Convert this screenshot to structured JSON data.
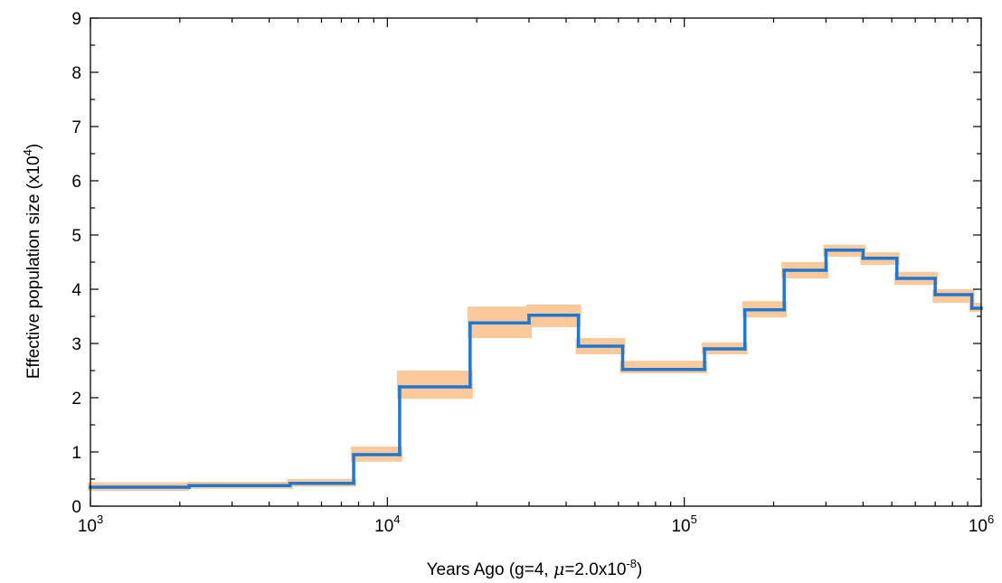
{
  "chart_data": {
    "type": "line",
    "xscale": "log",
    "xlim": [
      1000,
      1000000
    ],
    "ylim": [
      0,
      9
    ],
    "grid": false,
    "legend": "none",
    "xlabel": {
      "main": "Years Ago (g=4, ",
      "mu": "μ",
      "rest": "=2.0x10",
      "exp": "-8",
      "close": ")"
    },
    "ylabel": {
      "main": "Effective population size (x10",
      "exp": "4",
      "close": ")"
    },
    "xticks": [
      {
        "value": 1000,
        "base": "10",
        "exp": "3"
      },
      {
        "value": 10000,
        "base": "10",
        "exp": "4"
      },
      {
        "value": 100000,
        "base": "10",
        "exp": "5"
      },
      {
        "value": 1000000,
        "base": "10",
        "exp": "6"
      }
    ],
    "yticks": [
      "0",
      "1",
      "2",
      "3",
      "4",
      "5",
      "6",
      "7",
      "8",
      "9"
    ],
    "colors": {
      "line": "#1e78d2",
      "band": "#fcc99b"
    },
    "series": [
      {
        "style": "step",
        "steps": [
          {
            "x": 1000,
            "y": 0.35
          },
          {
            "x": 2150,
            "y": 0.38
          },
          {
            "x": 4700,
            "y": 0.42
          },
          {
            "x": 7700,
            "y": 0.95
          },
          {
            "x": 11000,
            "y": 2.2
          },
          {
            "x": 19000,
            "y": 3.38
          },
          {
            "x": 30000,
            "y": 3.52
          },
          {
            "x": 44000,
            "y": 2.95
          },
          {
            "x": 62000,
            "y": 2.52
          },
          {
            "x": 117000,
            "y": 2.9
          },
          {
            "x": 160000,
            "y": 3.62
          },
          {
            "x": 217000,
            "y": 4.35
          },
          {
            "x": 300000,
            "y": 4.72
          },
          {
            "x": 400000,
            "y": 4.57
          },
          {
            "x": 520000,
            "y": 4.2
          },
          {
            "x": 700000,
            "y": 3.9
          },
          {
            "x": 930000,
            "y": 3.65
          }
        ]
      },
      {
        "style": "band",
        "steps": [
          {
            "x": 1000,
            "lo": 0.28,
            "hi": 0.44
          },
          {
            "x": 2150,
            "lo": 0.32,
            "hi": 0.45
          },
          {
            "x": 4700,
            "lo": 0.36,
            "hi": 0.5
          },
          {
            "x": 7700,
            "lo": 0.82,
            "hi": 1.1
          },
          {
            "x": 11000,
            "lo": 1.98,
            "hi": 2.5
          },
          {
            "x": 19000,
            "lo": 3.1,
            "hi": 3.68
          },
          {
            "x": 30000,
            "lo": 3.3,
            "hi": 3.72
          },
          {
            "x": 44000,
            "lo": 2.8,
            "hi": 3.1
          },
          {
            "x": 62000,
            "lo": 2.45,
            "hi": 2.68
          },
          {
            "x": 117000,
            "lo": 2.8,
            "hi": 3.02
          },
          {
            "x": 160000,
            "lo": 3.48,
            "hi": 3.78
          },
          {
            "x": 217000,
            "lo": 4.2,
            "hi": 4.5
          },
          {
            "x": 300000,
            "lo": 4.6,
            "hi": 4.82
          },
          {
            "x": 400000,
            "lo": 4.45,
            "hi": 4.68
          },
          {
            "x": 520000,
            "lo": 4.08,
            "hi": 4.32
          },
          {
            "x": 700000,
            "lo": 3.75,
            "hi": 4.0
          },
          {
            "x": 930000,
            "lo": 3.58,
            "hi": 3.75
          }
        ]
      }
    ]
  }
}
